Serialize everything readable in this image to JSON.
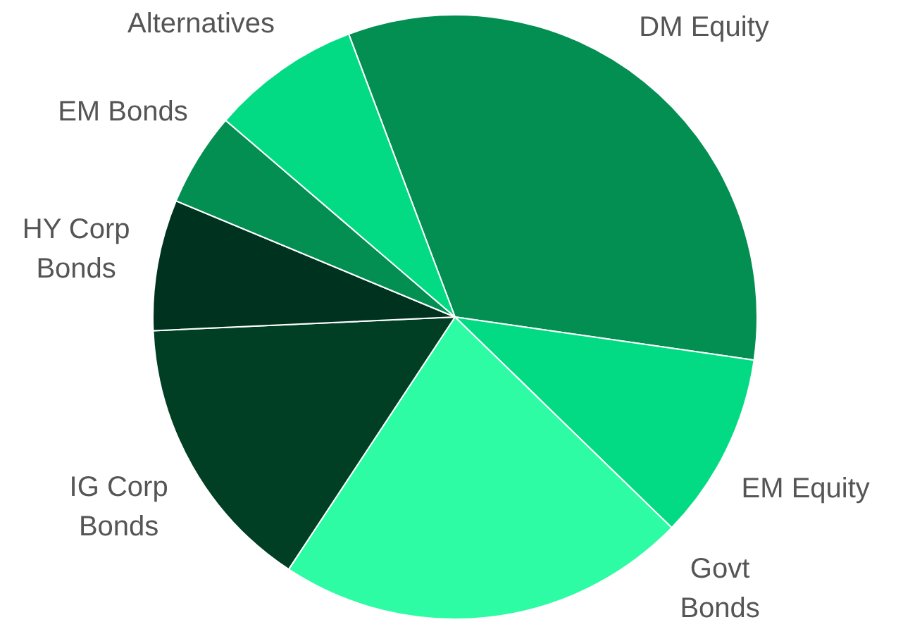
{
  "chart_data": {
    "type": "pie",
    "categories": [
      "DM Equity",
      "EM Equity",
      "Govt\nBonds",
      "IG Corp\nBonds",
      "HY Corp\nBonds",
      "EM Bonds",
      "Alternatives"
    ],
    "values": [
      33,
      10,
      22,
      15,
      7,
      5,
      8
    ],
    "colors": [
      "#038f52",
      "#02db84",
      "#2dfca4",
      "#003f24",
      "#00331f",
      "#038f52",
      "#02db84"
    ],
    "legend": false
  }
}
